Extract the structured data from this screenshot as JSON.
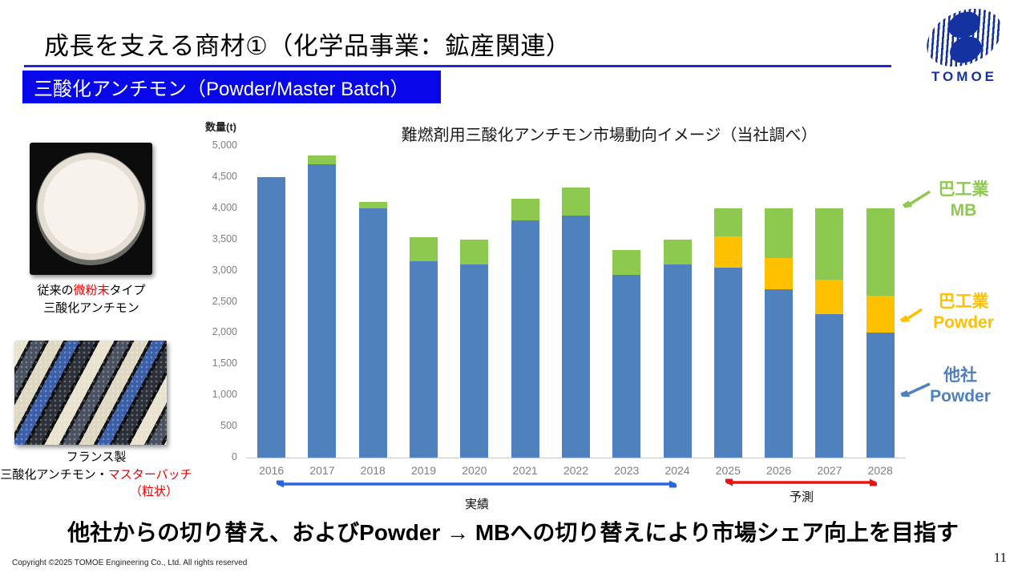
{
  "slide": {
    "title": "成長を支える商材①（化学品事業：鉱産関連）",
    "banner": "三酸化アンチモン（Powder/Master Batch）",
    "message": "他社からの切り替え、およびPowder → MBへの切り替えにより市場シェア向上を目指す",
    "footer": "Copyright ©2025 TOMOE Engineering Co., Ltd. All rights reserved",
    "page_number": "11",
    "logo_text": "TOMOE"
  },
  "photos": {
    "powder_caption": {
      "prefix": "従来の",
      "highlight": "微粉末",
      "suffix": "タイプ",
      "line2": "三酸化アンチモン"
    },
    "pellet_caption": {
      "line1": "フランス製",
      "line2_black": "三酸化アンチモン・",
      "line2_red": "マスターバッチ",
      "line3_red": "（粒状）"
    }
  },
  "chart_data": {
    "type": "bar",
    "stacked": true,
    "title": "難燃剤用三酸化アンチモン市場動向イメージ（当社調べ）",
    "ylabel": "数量(t)",
    "xlabel": "",
    "ylim": [
      0,
      5000
    ],
    "grid": false,
    "yticks": [
      "5,000",
      "4,500",
      "4,000",
      "3,500",
      "3,000",
      "2,500",
      "2,000",
      "1,500",
      "1,000",
      "500",
      "0"
    ],
    "categories": [
      "2016",
      "2017",
      "2018",
      "2019",
      "2020",
      "2021",
      "2022",
      "2023",
      "2024",
      "2025",
      "2026",
      "2027",
      "2028"
    ],
    "series": [
      {
        "name": "他社 Powder",
        "color": "#4E81BD",
        "values": [
          4500,
          4700,
          4000,
          3150,
          3100,
          3800,
          3880,
          2930,
          3100,
          3050,
          2700,
          2300,
          2000
        ]
      },
      {
        "name": "巴工業 Powder",
        "color": "#FFC000",
        "values": [
          0,
          0,
          0,
          0,
          0,
          0,
          0,
          0,
          0,
          500,
          500,
          550,
          600
        ]
      },
      {
        "name": "巴工業 MB",
        "color": "#8DC94E",
        "values": [
          0,
          150,
          100,
          380,
          400,
          350,
          450,
          400,
          400,
          450,
          800,
          1150,
          1400
        ]
      }
    ],
    "legend": [
      {
        "line1": "巴工業",
        "line2": "MB",
        "color": "#8DC94E"
      },
      {
        "line1": "巴工業",
        "line2": "Powder",
        "color": "#FFC000"
      },
      {
        "line1": "他社",
        "line2": "Powder",
        "color": "#4E81BD"
      }
    ],
    "period_annotations": [
      {
        "label": "実績",
        "years": "2016–2024",
        "color": "#2666E0"
      },
      {
        "label": "予測",
        "years": "2025–2028",
        "color": "#EE1111"
      }
    ]
  }
}
